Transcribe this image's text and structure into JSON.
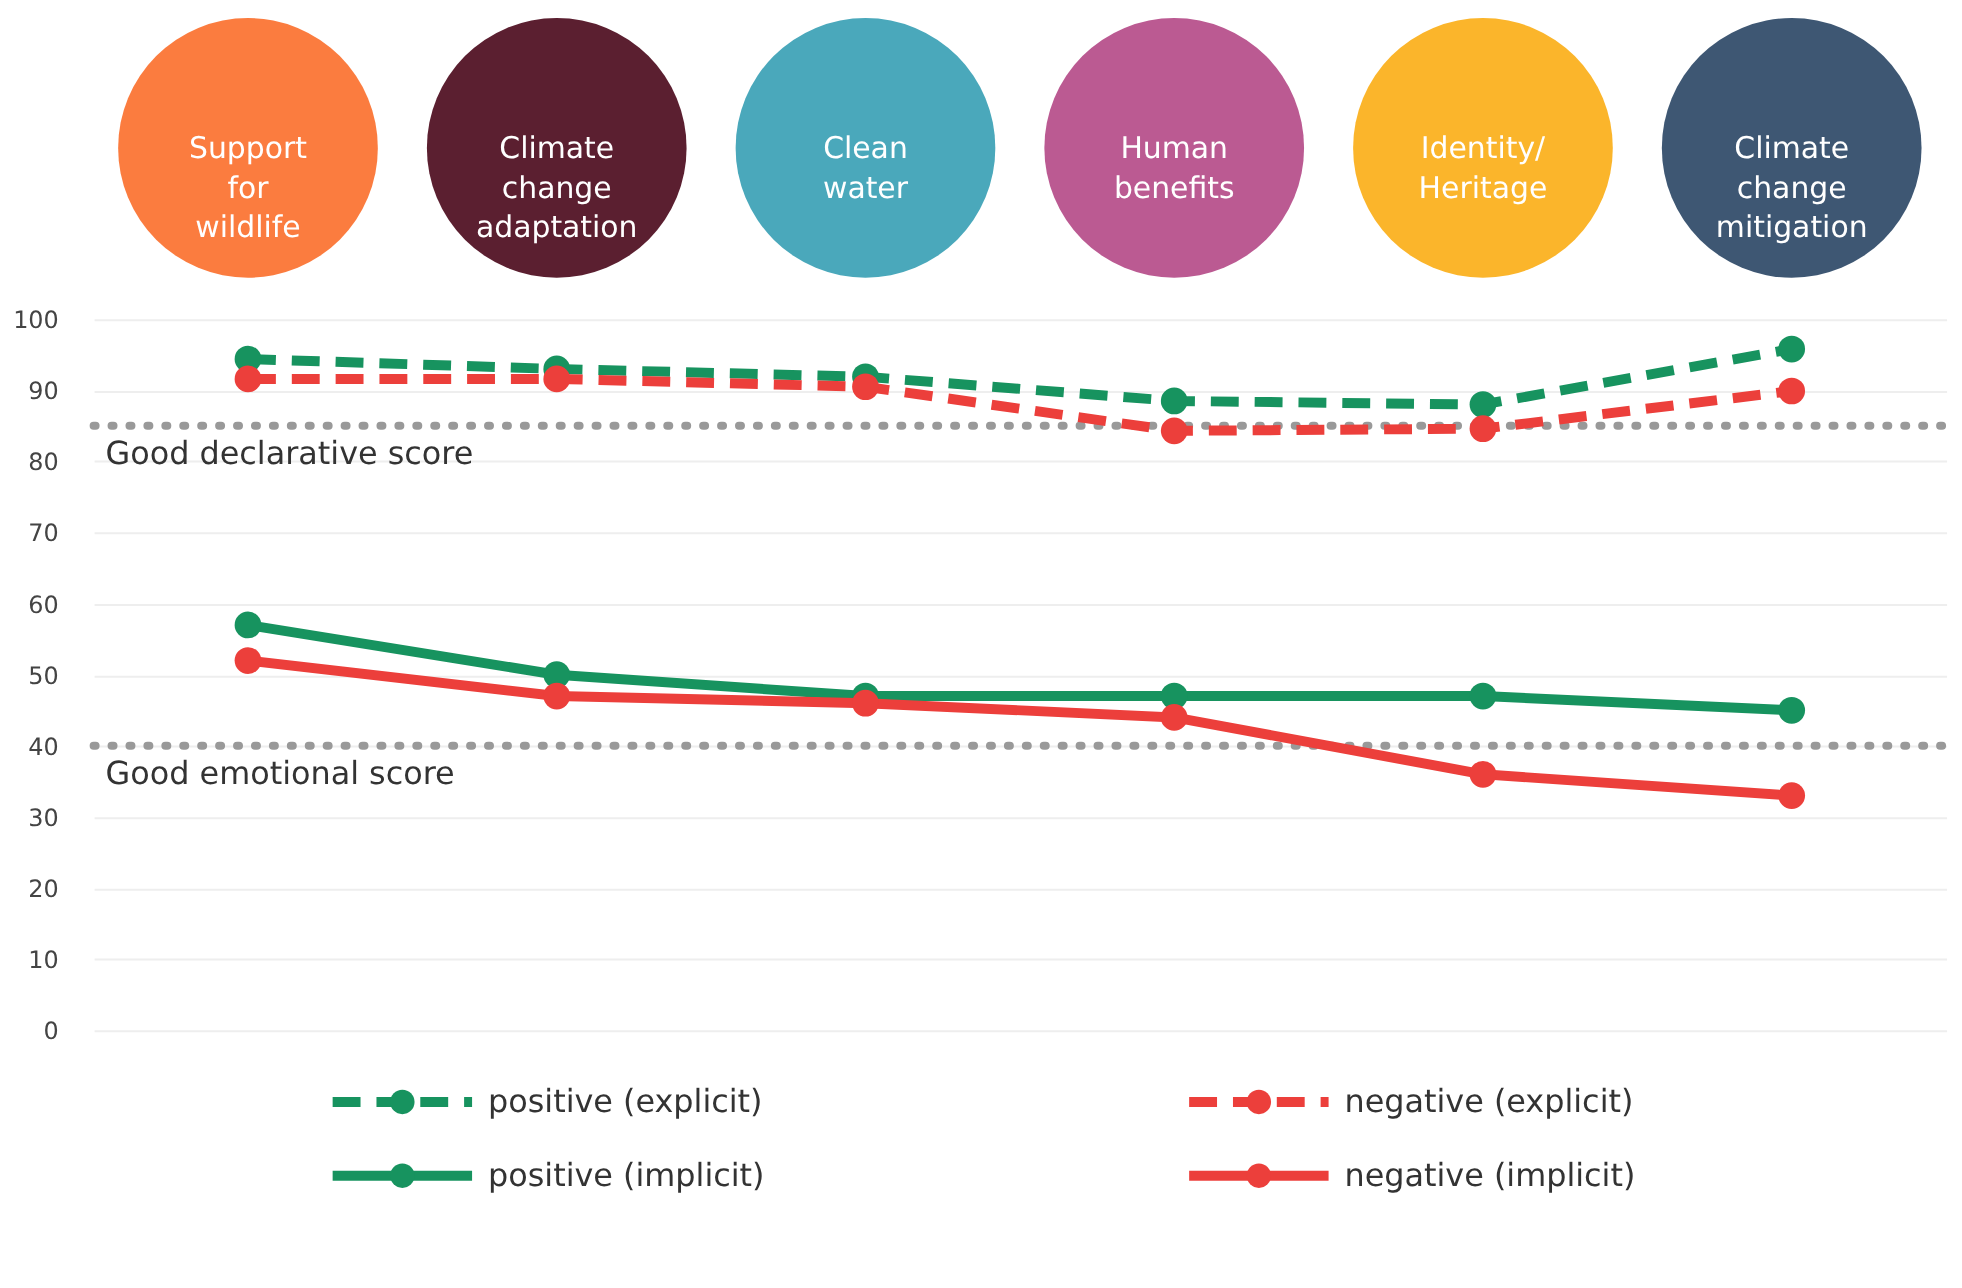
{
  "chart_data": {
    "type": "line",
    "categories": [
      "Support for wildlife",
      "Climate change adaptation",
      "Clean water",
      "Human benefits",
      "Identity/ Heritage",
      "Climate change mitigation"
    ],
    "colors": [
      "#fb7c3f",
      "#5b1f30",
      "#4aa8bb",
      "#bb5a92",
      "#fbb52b",
      "#3e5773"
    ],
    "series": [
      {
        "name": "positive (explicit)",
        "color": "#17935f",
        "line_style": "dashed",
        "values": [
          94.4,
          93,
          91.9,
          88.5,
          88,
          95.8
        ]
      },
      {
        "name": "negative (explicit)",
        "color": "#ec3f3b",
        "line_style": "dashed",
        "values": [
          91.6,
          91.6,
          90.5,
          84.3,
          84.6,
          89.9
        ]
      },
      {
        "name": "positive (implicit)",
        "color": "#17935f",
        "line_style": "solid",
        "values": [
          57,
          50,
          47,
          47,
          47,
          45
        ]
      },
      {
        "name": "negative (implicit)",
        "color": "#ec3f3b",
        "line_style": "solid",
        "values": [
          52,
          47,
          46,
          44,
          36,
          33
        ]
      }
    ],
    "ylim": [
      0,
      100
    ],
    "yticks": [
      0,
      10,
      20,
      30,
      40,
      50,
      60,
      70,
      80,
      90,
      100
    ],
    "ref_lines": [
      {
        "axis": "y",
        "value": 85,
        "label": "Good declarative score",
        "color": "#999999",
        "line_style": "dotted"
      },
      {
        "axis": "y",
        "value": 40,
        "label": "Good emotional score",
        "color": "#999999",
        "line_style": "dotted"
      }
    ],
    "grid": "y",
    "marker": "circle",
    "legend": "bottom",
    "tick_labels": "y"
  }
}
